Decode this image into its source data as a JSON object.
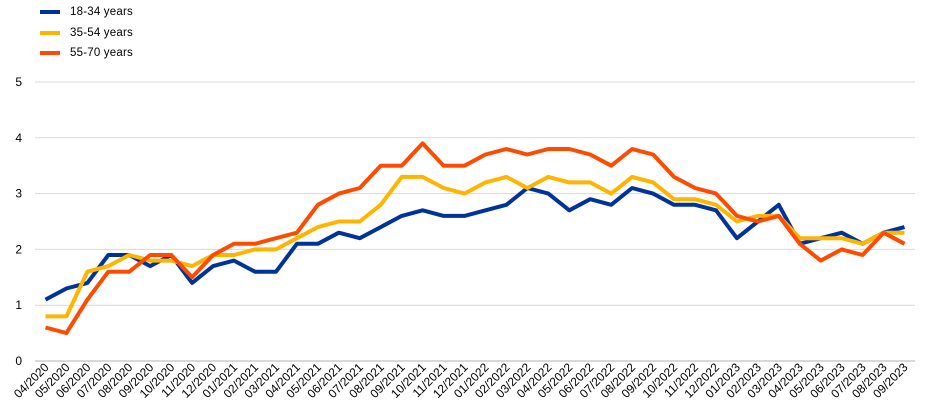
{
  "chart_data": {
    "type": "line",
    "title": "",
    "xlabel": "",
    "ylabel": "",
    "ylim": [
      0,
      5
    ],
    "yticks": [
      0,
      1,
      2,
      3,
      4,
      5
    ],
    "grid": true,
    "legend_position": "top-left",
    "categories": [
      "04/2020",
      "05/2020",
      "06/2020",
      "07/2020",
      "08/2020",
      "09/2020",
      "10/2020",
      "11/2020",
      "12/2020",
      "01/2021",
      "02/2021",
      "03/2021",
      "04/2021",
      "05/2021",
      "06/2021",
      "07/2021",
      "08/2021",
      "09/2021",
      "10/2021",
      "11/2021",
      "12/2021",
      "01/2022",
      "02/2022",
      "03/2022",
      "04/2022",
      "05/2022",
      "06/2022",
      "07/2022",
      "08/2022",
      "09/2022",
      "10/2022",
      "11/2022",
      "12/2022",
      "01/2023",
      "02/2023",
      "03/2023",
      "04/2023",
      "05/2023",
      "06/2023",
      "07/2023",
      "08/2023",
      "09/2023"
    ],
    "series": [
      {
        "name": "18-34 years",
        "color": "#003399",
        "values": [
          1.1,
          1.3,
          1.4,
          1.9,
          1.9,
          1.7,
          1.9,
          1.4,
          1.7,
          1.8,
          1.6,
          1.6,
          2.1,
          2.1,
          2.3,
          2.2,
          2.4,
          2.6,
          2.7,
          2.6,
          2.6,
          2.7,
          2.8,
          3.1,
          3.0,
          2.7,
          2.9,
          2.8,
          3.1,
          3.0,
          2.8,
          2.8,
          2.7,
          2.2,
          2.5,
          2.8,
          2.1,
          2.2,
          2.3,
          2.1,
          2.3,
          2.4
        ]
      },
      {
        "name": "35-54 years",
        "color": "#FFB400",
        "values": [
          0.8,
          0.8,
          1.6,
          1.7,
          1.9,
          1.8,
          1.8,
          1.7,
          1.9,
          1.9,
          2.0,
          2.0,
          2.2,
          2.4,
          2.5,
          2.5,
          2.8,
          3.3,
          3.3,
          3.1,
          3.0,
          3.2,
          3.3,
          3.1,
          3.3,
          3.2,
          3.2,
          3.0,
          3.3,
          3.2,
          2.9,
          2.9,
          2.8,
          2.5,
          2.6,
          2.6,
          2.2,
          2.2,
          2.2,
          2.1,
          2.3,
          2.3
        ]
      },
      {
        "name": "55-70 years",
        "color": "#FF4B00",
        "values": [
          0.6,
          0.5,
          1.1,
          1.6,
          1.6,
          1.9,
          1.9,
          1.5,
          1.9,
          2.1,
          2.1,
          2.2,
          2.3,
          2.8,
          3.0,
          3.1,
          3.5,
          3.5,
          3.9,
          3.5,
          3.5,
          3.7,
          3.8,
          3.7,
          3.8,
          3.8,
          3.7,
          3.5,
          3.8,
          3.7,
          3.3,
          3.1,
          3.0,
          2.6,
          2.5,
          2.6,
          2.1,
          1.8,
          2.0,
          1.9,
          2.3,
          2.1
        ]
      }
    ]
  }
}
